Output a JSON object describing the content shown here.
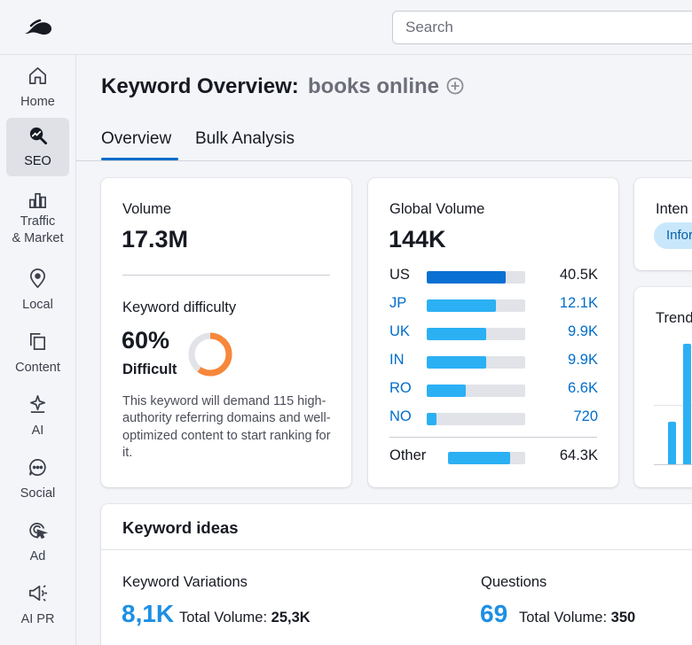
{
  "search": {
    "placeholder": "Search"
  },
  "sidebar": {
    "items": [
      {
        "label": "Home",
        "icon": "home-icon"
      },
      {
        "label": "SEO",
        "icon": "seo-icon",
        "active": true
      },
      {
        "label": "Traffic\n& Market",
        "line1": "Traffic",
        "line2": "& Market",
        "icon": "traffic-icon"
      },
      {
        "label": "Local",
        "icon": "location-pin-icon"
      },
      {
        "label": "Content",
        "icon": "content-icon"
      },
      {
        "label": "AI",
        "icon": "ai-icon"
      },
      {
        "label": "Social",
        "icon": "chat-bubble-icon"
      },
      {
        "label": "Ad",
        "icon": "ad-target-icon"
      },
      {
        "label": "AI PR",
        "icon": "megaphone-icon"
      }
    ]
  },
  "header": {
    "title": "Keyword Overview:",
    "keyword": "books online"
  },
  "tabs": [
    {
      "label": "Overview",
      "active": true
    },
    {
      "label": "Bulk Analysis"
    }
  ],
  "volume_card": {
    "volume_label": "Volume",
    "volume_value": "17.3M",
    "difficulty_label": "Keyword difficulty",
    "difficulty_value": "60%",
    "difficulty_level": "Difficult",
    "difficulty_fraction": 0.6,
    "description": "This keyword will demand 115 high-authority referring domains and well-optimized content to start ranking for it."
  },
  "global_card": {
    "label": "Global Volume",
    "value": "144K",
    "countries": [
      {
        "code": "US",
        "value": "40.5K",
        "share": 0.8,
        "highlight": true
      },
      {
        "code": "JP",
        "value": "12.1K",
        "share": 0.7
      },
      {
        "code": "UK",
        "value": "9.9K",
        "share": 0.6
      },
      {
        "code": "IN",
        "value": "9.9K",
        "share": 0.6
      },
      {
        "code": "RO",
        "value": "6.6K",
        "share": 0.4
      },
      {
        "code": "NO",
        "value": "720",
        "share": 0.1
      }
    ],
    "other": {
      "label": "Other",
      "value": "64.3K",
      "share": 0.8
    }
  },
  "intent_card": {
    "label": "Inten",
    "badge": "Infor"
  },
  "trend_card": {
    "label": "Trend",
    "bars": [
      0.35,
      1.0
    ]
  },
  "keyword_ideas": {
    "title": "Keyword ideas",
    "variations_label": "Keyword Variations",
    "variations_count": "8,1K",
    "variations_total_label": "Total Volume:",
    "variations_total": "25,3K",
    "questions_label": "Questions",
    "questions_count": "69",
    "questions_total_label": "Total Volume:",
    "questions_total": "350"
  },
  "colors": {
    "accent": "#006dca",
    "bar_light": "#2bb0f4",
    "bar_dark": "#0a70d2",
    "difficulty": "#f7873a"
  }
}
